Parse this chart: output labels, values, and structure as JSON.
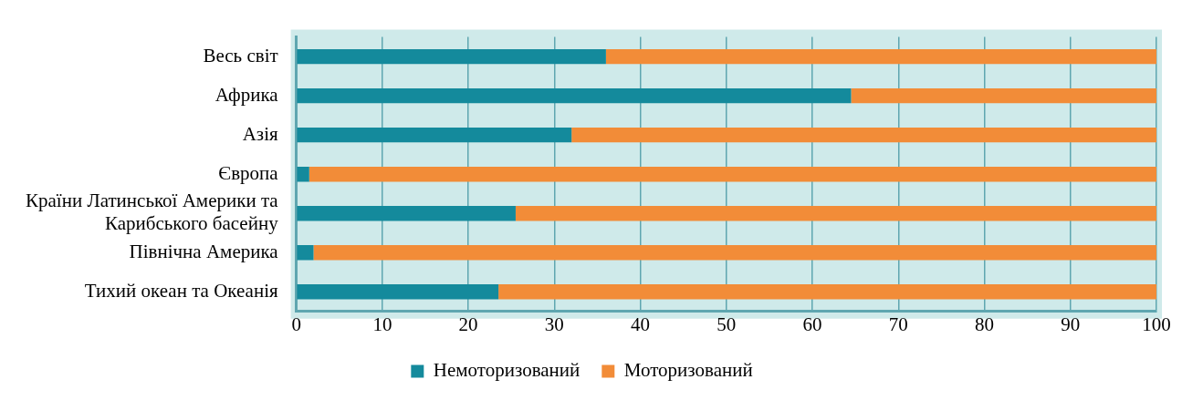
{
  "chart_data": {
    "type": "bar",
    "orientation": "horizontal",
    "stacked": true,
    "categories": [
      "Весь світ",
      "Африка",
      "Азія",
      "Європа",
      "Країни Латинської Америки та Карибського басейну",
      "Північна Америка",
      "Тихий океан та Океанія"
    ],
    "series": [
      {
        "name": "Немоторизований",
        "color": "#148a9c",
        "values": [
          36,
          64.5,
          32,
          1.5,
          25.5,
          2,
          23.5
        ]
      },
      {
        "name": "Моторизований",
        "color": "#f28c38",
        "values": [
          64,
          35.5,
          68,
          98.5,
          74.5,
          98,
          76.5
        ]
      }
    ],
    "xlim": [
      0,
      100
    ],
    "xticks": [
      0,
      10,
      20,
      30,
      40,
      50,
      60,
      70,
      80,
      90,
      100
    ],
    "grid": "x",
    "legend": "bottom"
  }
}
